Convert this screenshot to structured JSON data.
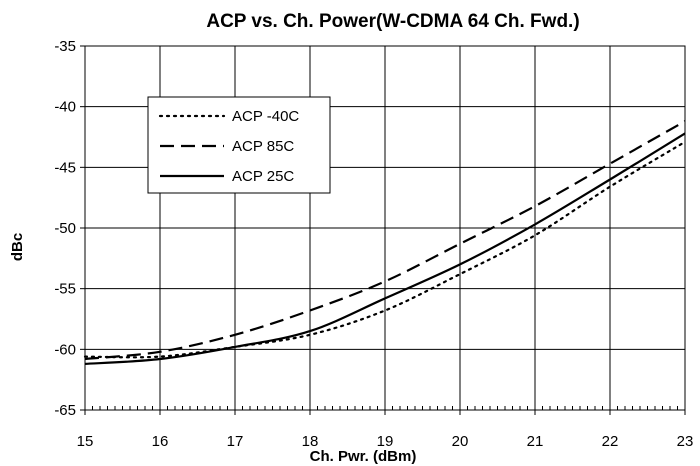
{
  "chart_data": {
    "type": "line",
    "title": "ACP vs. Ch. Power(W-CDMA 64 Ch. Fwd.)",
    "xlabel": "Ch. Pwr. (dBm)",
    "ylabel": "dBc",
    "xlim": [
      15,
      23
    ],
    "ylim": [
      -65,
      -35
    ],
    "x_ticks": [
      15,
      16,
      17,
      18,
      19,
      20,
      21,
      22,
      23
    ],
    "y_ticks": [
      -35,
      -40,
      -45,
      -50,
      -55,
      -60,
      -65
    ],
    "grid": true,
    "legend_position": "top-left",
    "series": [
      {
        "name": "ACP -40C",
        "line_style": "dotted",
        "color": "#000000",
        "x": [
          15,
          16,
          17,
          18,
          19,
          20,
          21,
          22,
          23
        ],
        "y": [
          -60.6,
          -60.6,
          -59.8,
          -58.8,
          -56.8,
          -53.8,
          -50.6,
          -46.6,
          -42.9
        ]
      },
      {
        "name": "ACP 85C",
        "line_style": "dashed",
        "color": "#000000",
        "x": [
          15,
          16,
          17,
          18,
          19,
          20,
          21,
          22,
          23
        ],
        "y": [
          -60.8,
          -60.2,
          -58.8,
          -56.8,
          -54.4,
          -51.3,
          -48.2,
          -44.7,
          -41.2
        ]
      },
      {
        "name": "ACP 25C",
        "line_style": "solid",
        "color": "#000000",
        "x": [
          15,
          16,
          17,
          18,
          19,
          20,
          21,
          22,
          23
        ],
        "y": [
          -61.2,
          -60.8,
          -59.8,
          -58.5,
          -55.8,
          -53.0,
          -49.7,
          -46.0,
          -42.2
        ]
      }
    ]
  }
}
